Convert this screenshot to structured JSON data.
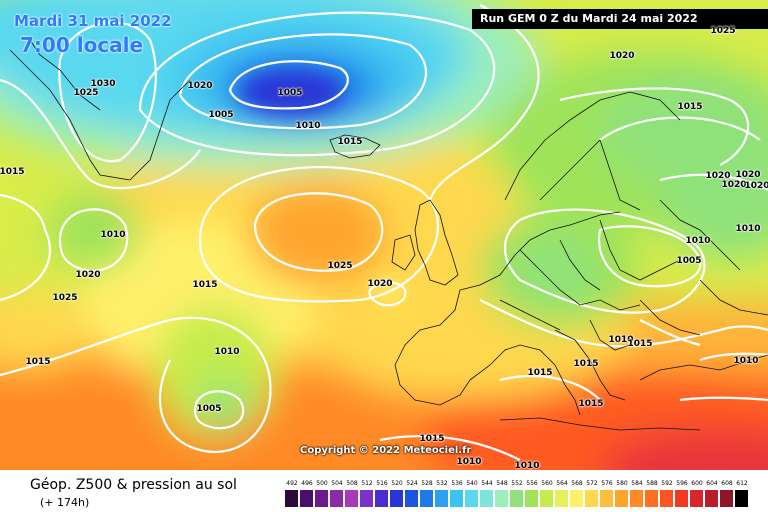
{
  "header": {
    "date_line": "Mardi 31 mai 2022",
    "time_line": "7:00 locale",
    "run_info": "Run GEM 0 Z du Mardi 24 mai 2022"
  },
  "copyright": "Copyright © 2022 Meteociel.fr",
  "footer": {
    "field_title": "Géop. Z500 & pression au sol",
    "lead_time": "(+ 174h)"
  },
  "isobar_labels": [
    {
      "text": "1030"
    },
    {
      "text": "1025"
    },
    {
      "text": "1020"
    },
    {
      "text": "1005"
    },
    {
      "text": "1005"
    },
    {
      "text": "1010"
    },
    {
      "text": "1015"
    },
    {
      "text": "1020"
    },
    {
      "text": "1025"
    },
    {
      "text": "1015"
    },
    {
      "text": "1010"
    },
    {
      "text": "1020"
    },
    {
      "text": "1025"
    },
    {
      "text": "1015"
    },
    {
      "text": "1025"
    },
    {
      "text": "1020"
    },
    {
      "text": "1015"
    },
    {
      "text": "1010"
    },
    {
      "text": "1005"
    },
    {
      "text": "1015"
    },
    {
      "text": "1015"
    },
    {
      "text": "1015"
    },
    {
      "text": "1015"
    },
    {
      "text": "1010"
    },
    {
      "text": "1015"
    },
    {
      "text": "1010"
    },
    {
      "text": "1010"
    },
    {
      "text": "1005"
    },
    {
      "text": "1010"
    },
    {
      "text": "1015"
    },
    {
      "text": "1020"
    },
    {
      "text": "1020"
    },
    {
      "text": "1020"
    },
    {
      "text": "1020"
    },
    {
      "text": "1010"
    },
    {
      "text": "1010"
    },
    {
      "text": "1015"
    }
  ],
  "scale": {
    "ticks": [
      "492",
      "496",
      "500",
      "504",
      "508",
      "512",
      "516",
      "520",
      "524",
      "528",
      "532",
      "536",
      "540",
      "544",
      "548",
      "552",
      "556",
      "560",
      "564",
      "568",
      "572",
      "576",
      "580",
      "584",
      "588",
      "592",
      "596",
      "600",
      "604",
      "608",
      "612"
    ],
    "colors": [
      "#2b0a3d",
      "#4b0f6b",
      "#6c1b8f",
      "#8b2aa6",
      "#a83ab8",
      "#7a33c9",
      "#4a2dcf",
      "#2a35d6",
      "#1d55e0",
      "#1f7ae8",
      "#2aa0ef",
      "#3cc3f2",
      "#5ad8f0",
      "#7ee6d8",
      "#9ceebb",
      "#8fe27a",
      "#9fe35a",
      "#c4ec4c",
      "#e6f05a",
      "#fff06a",
      "#ffd84d",
      "#ffbf3a",
      "#ffa52e",
      "#ff8a26",
      "#ff6f22",
      "#ff5420",
      "#f03a24",
      "#d9262a",
      "#b81d2c",
      "#8f152a",
      "#000000"
    ]
  }
}
